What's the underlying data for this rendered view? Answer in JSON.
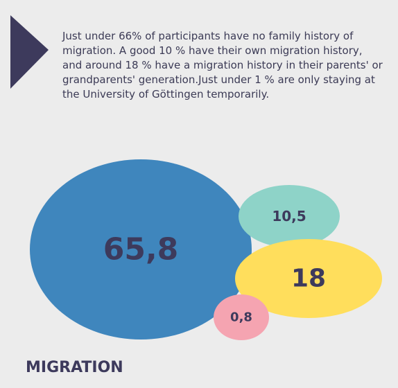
{
  "chart_data": {
    "type": "bubble",
    "title": "MIGRATION",
    "subtitle": "Just under 66% of participants have no family history of migration. A good 10 % have their own migration history, and around 18 % have a migration history in their parents' or grandparents' generation.Just under 1 % are only staying at the University of Göttingen temporarily.",
    "values": [
      65.8,
      10.5,
      18,
      0.8
    ],
    "value_labels": [
      "65,8",
      "10,5",
      "18",
      "0,8"
    ],
    "colors": [
      "#3f86bd",
      "#8ed3c8",
      "#ffde5c",
      "#f5a4b1"
    ]
  }
}
